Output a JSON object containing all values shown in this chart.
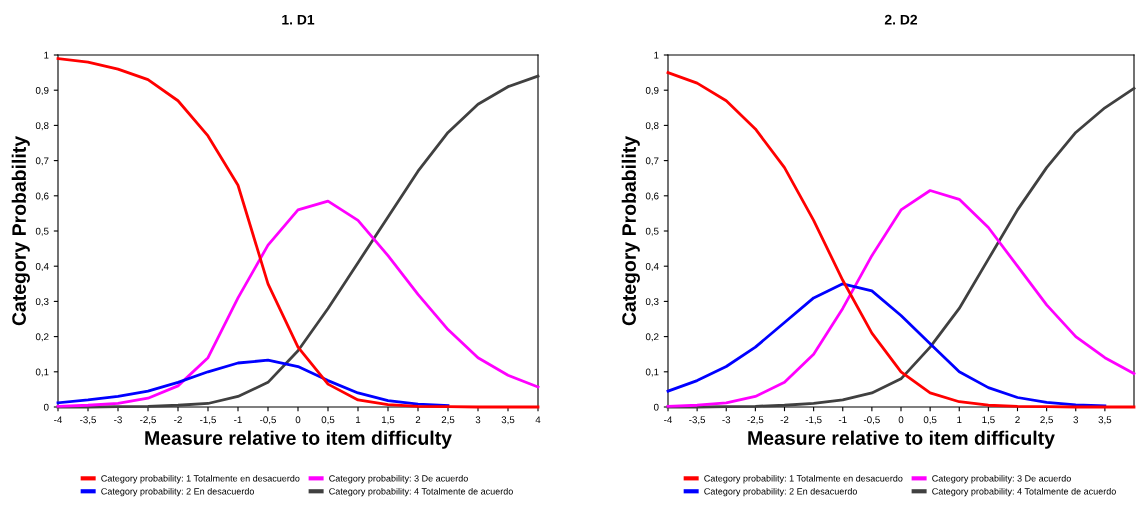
{
  "chart_data": [
    {
      "type": "line",
      "title": "1. D1",
      "xlabel": "Measure relative to item difficulty",
      "ylabel": "Category Probability",
      "x": [
        -4,
        -3.5,
        -3,
        -2.5,
        -2,
        -1.5,
        -1,
        -0.5,
        0,
        0.5,
        1,
        1.5,
        2,
        2.5,
        3,
        3.5,
        4
      ],
      "series": [
        {
          "name": "Category probability: 1 Totalmente en desacuerdo",
          "color": "#ff0000",
          "values": [
            0.99,
            0.98,
            0.96,
            0.93,
            0.87,
            0.77,
            0.63,
            0.35,
            0.17,
            0.065,
            0.02,
            0.007,
            0.002,
            0.001,
            0,
            0,
            0
          ]
        },
        {
          "name": "Category probability: 2 En desacuerdo",
          "color": "#0000ff",
          "values": [
            0.012,
            0.02,
            0.03,
            0.045,
            0.07,
            0.1,
            0.125,
            0.133,
            0.115,
            0.075,
            0.04,
            0.018,
            0.008,
            0.004,
            null,
            null,
            null
          ]
        },
        {
          "name": "Category probability: 3 De acuerdo",
          "color": "#ff00ff",
          "values": [
            0.002,
            0.005,
            0.01,
            0.025,
            0.06,
            0.14,
            0.31,
            0.46,
            0.56,
            0.585,
            0.53,
            0.43,
            0.32,
            0.22,
            0.14,
            0.09,
            0.057
          ]
        },
        {
          "name": "Category probability: 4 Totalmente de acuerdo",
          "color": "#404040",
          "values": [
            0,
            0,
            0.001,
            0.002,
            0.005,
            0.01,
            0.03,
            0.07,
            0.16,
            0.28,
            0.41,
            0.54,
            0.67,
            0.78,
            0.86,
            0.91,
            0.94
          ]
        }
      ],
      "xlim": [
        -4,
        4
      ],
      "ylim": [
        0,
        1
      ],
      "xticks": [
        -4,
        {
          "value": -3.5,
          "label": "-3,5"
        },
        -3,
        {
          "value": -2.5,
          "label": "-2,5"
        },
        -2,
        {
          "value": -1.5,
          "label": "-1,5"
        },
        -1,
        {
          "value": -0.5,
          "label": "-0,5"
        },
        0,
        {
          "value": 0.5,
          "label": "0,5"
        },
        1,
        {
          "value": 1.5,
          "label": "1,5"
        },
        2,
        {
          "value": 2.5,
          "label": "2,5"
        },
        3,
        {
          "value": 3.5,
          "label": "3,5"
        },
        4
      ],
      "yticks": [
        0,
        {
          "value": 0.1,
          "label": "0,1"
        },
        {
          "value": 0.2,
          "label": "0,2"
        },
        {
          "value": 0.3,
          "label": "0,3"
        },
        {
          "value": 0.4,
          "label": "0,4"
        },
        {
          "value": 0.5,
          "label": "0,5"
        },
        {
          "value": 0.6,
          "label": "0,6"
        },
        {
          "value": 0.7,
          "label": "0,7"
        },
        {
          "value": 0.8,
          "label": "0,8"
        },
        {
          "value": 0.9,
          "label": "0,9"
        },
        1
      ],
      "grid": false,
      "legend": "bottom",
      "marker": "none",
      "line_style": "solid"
    },
    {
      "type": "line",
      "title": "2. D2",
      "xlabel": "Measure relative to item difficulty",
      "ylabel": "Category Probability",
      "x": [
        -4,
        -3.5,
        -3,
        -2.5,
        -2,
        -1.5,
        -1,
        -0.5,
        0,
        0.5,
        1,
        1.5,
        2,
        2.5,
        3,
        3.5,
        4
      ],
      "series": [
        {
          "name": "Category probability: 1 Totalmente en desacuerdo",
          "color": "#ff0000",
          "values": [
            0.95,
            0.92,
            0.87,
            0.79,
            0.68,
            0.53,
            0.36,
            0.21,
            0.1,
            0.04,
            0.015,
            0.005,
            0.002,
            0.001,
            0,
            0,
            0
          ]
        },
        {
          "name": "Category probability: 2 En desacuerdo",
          "color": "#0000ff",
          "values": [
            0.045,
            0.075,
            0.115,
            0.17,
            0.24,
            0.31,
            0.35,
            0.33,
            0.26,
            0.18,
            0.1,
            0.055,
            0.027,
            0.013,
            0.006,
            0.003,
            null
          ]
        },
        {
          "name": "Category probability: 3 De acuerdo",
          "color": "#ff00ff",
          "values": [
            0.002,
            0.005,
            0.012,
            0.03,
            0.07,
            0.15,
            0.28,
            0.43,
            0.56,
            0.615,
            0.59,
            0.51,
            0.4,
            0.29,
            0.2,
            0.14,
            0.095
          ]
        },
        {
          "name": "Category probability: 4 Totalmente de acuerdo",
          "color": "#404040",
          "values": [
            0,
            0,
            0.001,
            0.002,
            0.005,
            0.01,
            0.02,
            0.04,
            0.08,
            0.17,
            0.28,
            0.42,
            0.56,
            0.68,
            0.78,
            0.85,
            0.905
          ]
        }
      ],
      "xlim": [
        -4,
        4
      ],
      "ylim": [
        0,
        1
      ],
      "xticks": [
        -4,
        {
          "value": -3.5,
          "label": "-3,5"
        },
        -3,
        {
          "value": -2.5,
          "label": "-2,5"
        },
        -2,
        {
          "value": -1.5,
          "label": "-1,5"
        },
        -1,
        {
          "value": -0.5,
          "label": "-0,5"
        },
        0,
        {
          "value": 0.5,
          "label": "0,5"
        },
        1,
        {
          "value": 1.5,
          "label": "1,5"
        },
        2,
        {
          "value": 2.5,
          "label": "2,5"
        },
        3,
        {
          "value": 3.5,
          "label": "3,5"
        }
      ],
      "yticks": [
        0,
        {
          "value": 0.1,
          "label": "0,1"
        },
        {
          "value": 0.2,
          "label": "0,2"
        },
        {
          "value": 0.3,
          "label": "0,3"
        },
        {
          "value": 0.4,
          "label": "0,4"
        },
        {
          "value": 0.5,
          "label": "0,5"
        },
        {
          "value": 0.6,
          "label": "0,6"
        },
        {
          "value": 0.7,
          "label": "0,7"
        },
        {
          "value": 0.8,
          "label": "0,8"
        },
        {
          "value": 0.9,
          "label": "0,9"
        },
        1
      ],
      "grid": false,
      "legend": "bottom",
      "marker": "none",
      "line_style": "solid"
    }
  ]
}
